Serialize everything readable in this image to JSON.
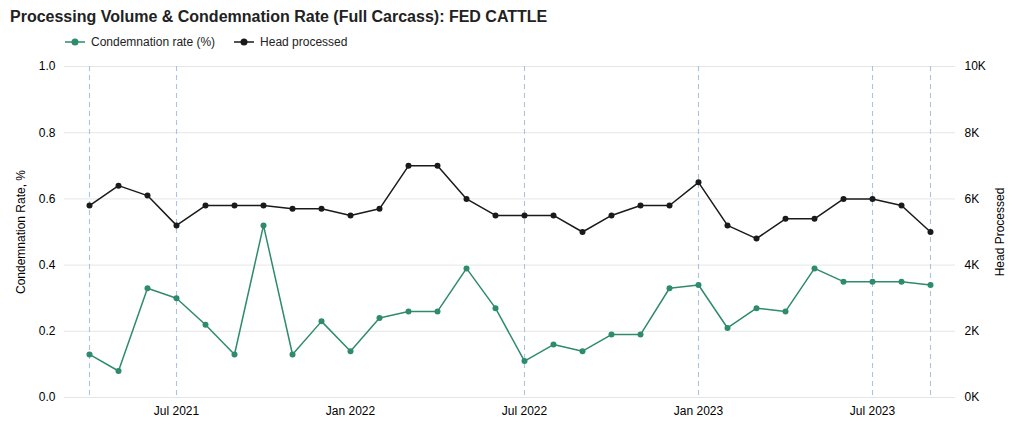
{
  "chart_data": {
    "type": "line",
    "title": "Processing Volume & Condemnation Rate (Full Carcass): FED CATTLE",
    "categories": [
      null,
      null,
      null,
      "Jul 2021",
      null,
      null,
      null,
      null,
      null,
      "Jan 2022",
      null,
      null,
      null,
      null,
      null,
      "Jul 2022",
      null,
      null,
      null,
      null,
      null,
      "Jan 2023",
      null,
      null,
      null,
      null,
      null,
      "Jul 2023",
      null,
      null
    ],
    "series": [
      {
        "name": "Condemnation rate (%)",
        "color": "#2e8b6e",
        "marker": "circle",
        "axis": "y",
        "values": [
          0.13,
          0.08,
          0.33,
          0.3,
          0.22,
          0.13,
          0.52,
          0.13,
          0.23,
          0.14,
          0.24,
          0.26,
          0.26,
          0.39,
          0.27,
          0.11,
          0.16,
          0.14,
          0.19,
          0.19,
          0.33,
          0.34,
          0.21,
          0.27,
          0.26,
          0.39,
          0.35,
          0.35,
          0.35,
          0.34
        ]
      },
      {
        "name": "Head processed",
        "color": "#1a1a1a",
        "marker": "circle",
        "axis": "y2",
        "values": [
          5800,
          6400,
          6100,
          5200,
          5800,
          5800,
          5800,
          5700,
          5700,
          5500,
          5700,
          7000,
          7000,
          6000,
          5500,
          5500,
          5500,
          5000,
          5500,
          5800,
          5800,
          6500,
          5200,
          4800,
          5400,
          5400,
          6000,
          6000,
          5800,
          5000
        ]
      }
    ],
    "ylabel": "Condemnation Rate, %",
    "y2label": "Head Processed",
    "ylim": [
      0,
      1
    ],
    "yticks": [
      {
        "value": 0,
        "label": "0.0"
      },
      0.2,
      0.4,
      0.6,
      0.8,
      {
        "value": 1,
        "label": "1.0"
      }
    ],
    "y2lim": [
      0,
      10000
    ],
    "y2ticks": [
      {
        "value": 0,
        "label": "0K"
      },
      {
        "value": 2000,
        "label": "2K"
      },
      {
        "value": 4000,
        "label": "4K"
      },
      {
        "value": 6000,
        "label": "6K"
      },
      {
        "value": 8000,
        "label": "8K"
      },
      {
        "value": 10000,
        "label": "10K"
      }
    ],
    "vlines": {
      "x": [
        0,
        3,
        15,
        21,
        27,
        29
      ],
      "color": "#a8c4e0",
      "line_style": "dashed"
    },
    "grid": true,
    "legend": "upper left"
  }
}
